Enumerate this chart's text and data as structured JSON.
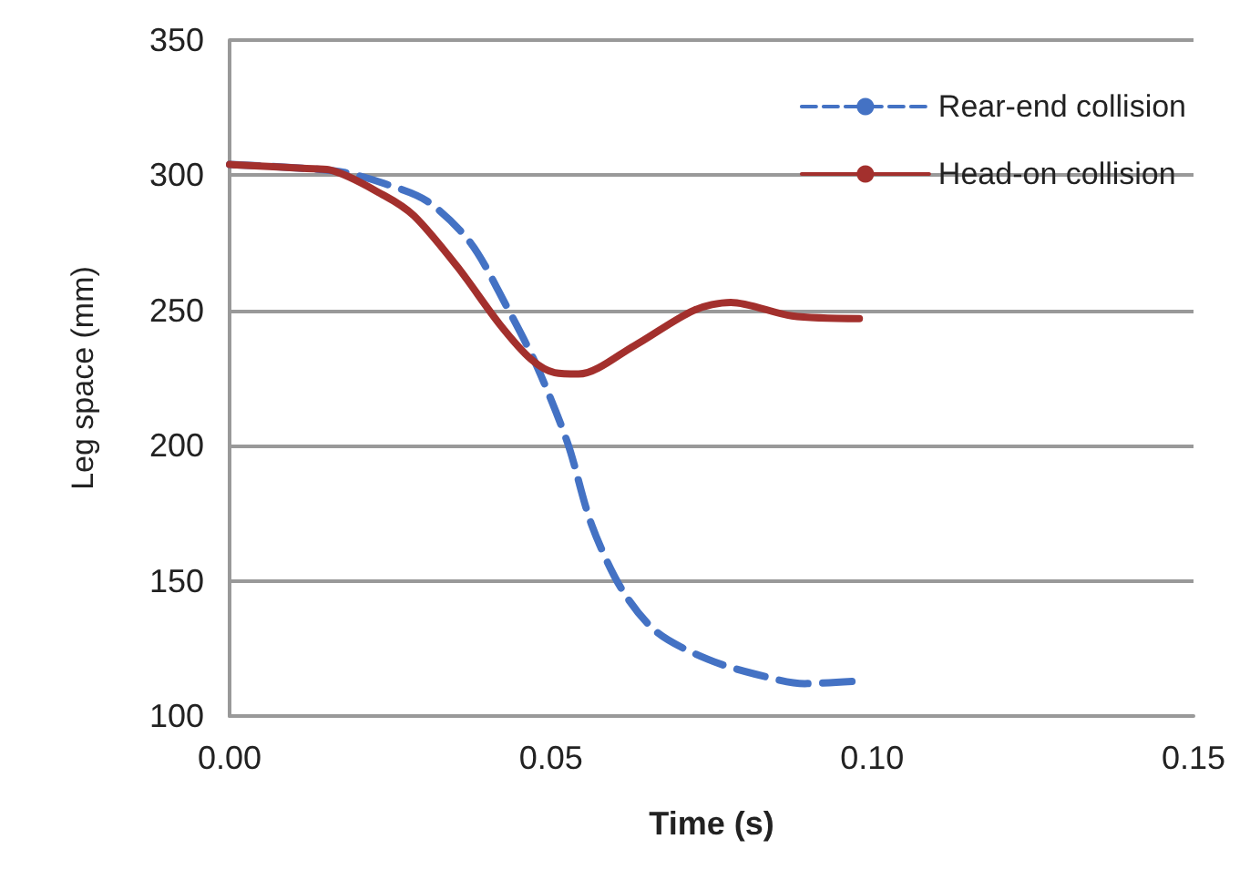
{
  "chart_data": {
    "type": "line",
    "xlabel": "Time (s)",
    "ylabel": "Leg space (mm)",
    "xlim": [
      0,
      0.15
    ],
    "xticks": [
      {
        "value": 0,
        "label": "0.00"
      },
      {
        "value": 0.05,
        "label": "0.05"
      },
      {
        "value": 0.1,
        "label": "0.10"
      },
      {
        "value": 0.15,
        "label": "0.15"
      }
    ],
    "ylim": [
      100,
      350
    ],
    "yticks": [
      100,
      150,
      200,
      250,
      300,
      350
    ],
    "grid": "y",
    "legend": "top right",
    "marker": "none",
    "series": [
      {
        "name": "Rear-end collision",
        "color": "#4472c4",
        "line_style": "dashed",
        "x": [
          0,
          0.012,
          0.018,
          0.024,
          0.0307,
          0.0375,
          0.043,
          0.0477,
          0.0526,
          0.0563,
          0.061,
          0.0665,
          0.0744,
          0.0818,
          0.0895,
          0.098
        ],
        "values": [
          304,
          302.5,
          301,
          297,
          290.5,
          275,
          252,
          230,
          201,
          171,
          147,
          131,
          121,
          115.5,
          112,
          113
        ]
      },
      {
        "name": "Head-on collision",
        "color": "#a3302d",
        "line_style": "solid",
        "x": [
          0,
          0.012,
          0.0155,
          0.024,
          0.0287,
          0.0355,
          0.042,
          0.0469,
          0.0506,
          0.0543,
          0.063,
          0.0722,
          0.078,
          0.0875,
          0.098
        ],
        "values": [
          304,
          302.5,
          302,
          292.6,
          285,
          266,
          245,
          232,
          227,
          226.5,
          237,
          250,
          253,
          248,
          247
        ]
      }
    ]
  }
}
